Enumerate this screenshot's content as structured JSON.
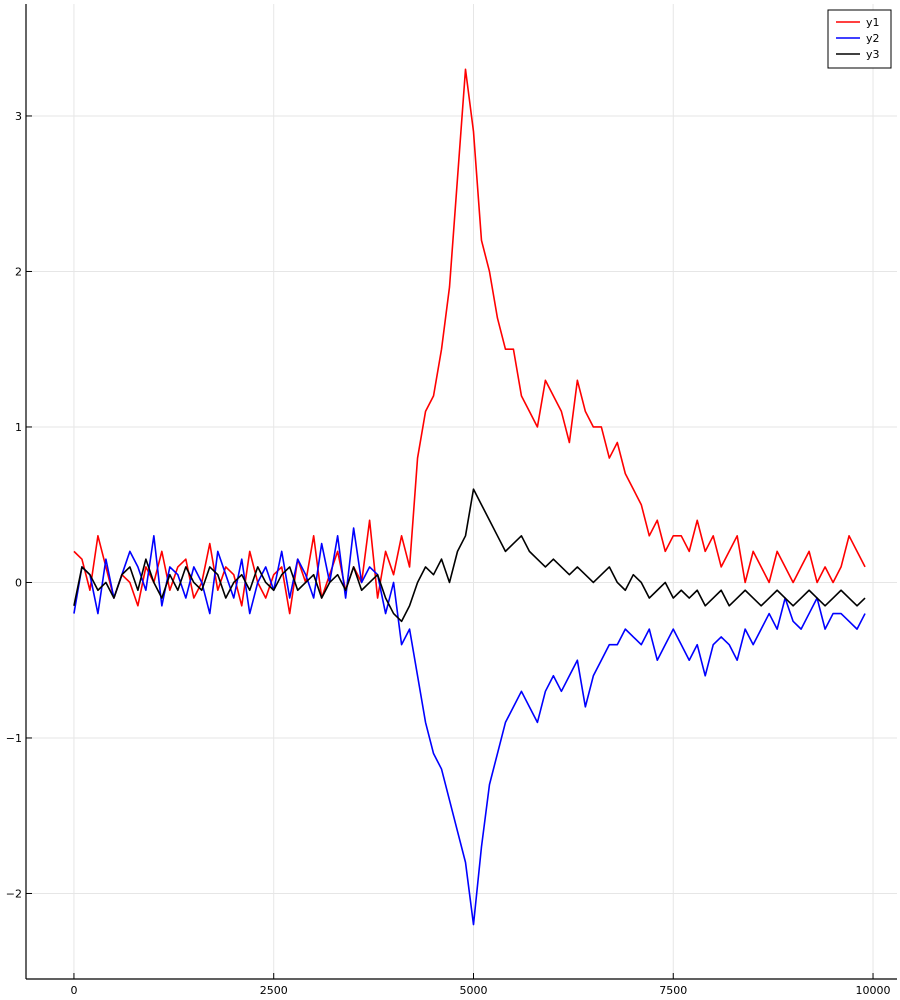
{
  "chart_data": {
    "type": "line",
    "title": "",
    "xlabel": "",
    "ylabel": "",
    "xlim": [
      -600,
      10300
    ],
    "ylim": [
      -2.55,
      3.72
    ],
    "x_ticks": [
      0,
      2500,
      5000,
      7500,
      10000
    ],
    "x_tick_labels": [
      "0",
      "2500",
      "5000",
      "7500",
      "10000"
    ],
    "y_ticks": [
      -2,
      -1,
      0,
      1,
      2,
      3
    ],
    "y_tick_labels": [
      "−2",
      "−1",
      "0",
      "1",
      "2",
      "3"
    ],
    "grid": true,
    "legend_position": "top-right",
    "x_start": 0,
    "x_step": 100,
    "series": [
      {
        "name": "y1",
        "color": "#ff0000",
        "values": [
          0.2,
          0.15,
          -0.05,
          0.3,
          0.1,
          -0.1,
          0.05,
          0.0,
          -0.15,
          0.1,
          0.0,
          0.2,
          -0.05,
          0.1,
          0.15,
          -0.1,
          0.0,
          0.25,
          -0.05,
          0.1,
          0.05,
          -0.15,
          0.2,
          0.0,
          -0.1,
          0.05,
          0.1,
          -0.2,
          0.15,
          0.0,
          0.3,
          -0.1,
          0.05,
          0.2,
          -0.05,
          0.1,
          0.0,
          0.4,
          -0.1,
          0.2,
          0.05,
          0.3,
          0.1,
          0.8,
          1.1,
          1.2,
          1.5,
          1.9,
          2.6,
          3.3,
          2.9,
          2.2,
          2.0,
          1.7,
          1.5,
          1.5,
          1.2,
          1.1,
          1.0,
          1.3,
          1.2,
          1.1,
          0.9,
          1.3,
          1.1,
          1.0,
          1.0,
          0.8,
          0.9,
          0.7,
          0.6,
          0.5,
          0.3,
          0.4,
          0.2,
          0.3,
          0.3,
          0.2,
          0.4,
          0.2,
          0.3,
          0.1,
          0.2,
          0.3,
          0.0,
          0.2,
          0.1,
          0.0,
          0.2,
          0.1,
          0.0,
          0.1,
          0.2,
          0.0,
          0.1,
          0.0,
          0.1,
          0.3,
          0.2,
          0.1
        ]
      },
      {
        "name": "y2",
        "color": "#0000ff",
        "values": [
          -0.2,
          0.1,
          0.05,
          -0.2,
          0.15,
          -0.1,
          0.05,
          0.2,
          0.1,
          -0.05,
          0.3,
          -0.15,
          0.1,
          0.05,
          -0.1,
          0.1,
          0.0,
          -0.2,
          0.2,
          0.05,
          -0.1,
          0.15,
          -0.2,
          0.0,
          0.1,
          -0.05,
          0.2,
          -0.1,
          0.15,
          0.05,
          -0.1,
          0.25,
          0.0,
          0.3,
          -0.1,
          0.35,
          0.0,
          0.1,
          0.05,
          -0.2,
          0.0,
          -0.4,
          -0.3,
          -0.6,
          -0.9,
          -1.1,
          -1.2,
          -1.4,
          -1.6,
          -1.8,
          -2.2,
          -1.7,
          -1.3,
          -1.1,
          -0.9,
          -0.8,
          -0.7,
          -0.8,
          -0.9,
          -0.7,
          -0.6,
          -0.7,
          -0.6,
          -0.5,
          -0.8,
          -0.6,
          -0.5,
          -0.4,
          -0.4,
          -0.3,
          -0.35,
          -0.4,
          -0.3,
          -0.5,
          -0.4,
          -0.3,
          -0.4,
          -0.5,
          -0.4,
          -0.6,
          -0.4,
          -0.35,
          -0.4,
          -0.5,
          -0.3,
          -0.4,
          -0.3,
          -0.2,
          -0.3,
          -0.1,
          -0.25,
          -0.3,
          -0.2,
          -0.1,
          -0.3,
          -0.2,
          -0.2,
          -0.25,
          -0.3,
          -0.2
        ]
      },
      {
        "name": "y3",
        "color": "#000000",
        "values": [
          -0.15,
          0.1,
          0.05,
          -0.05,
          0.0,
          -0.1,
          0.05,
          0.1,
          -0.05,
          0.15,
          0.0,
          -0.1,
          0.05,
          -0.05,
          0.1,
          0.0,
          -0.05,
          0.1,
          0.05,
          -0.1,
          0.0,
          0.05,
          -0.05,
          0.1,
          0.0,
          -0.05,
          0.05,
          0.1,
          -0.05,
          0.0,
          0.05,
          -0.1,
          0.0,
          0.05,
          -0.05,
          0.1,
          -0.05,
          0.0,
          0.05,
          -0.1,
          -0.2,
          -0.25,
          -0.15,
          0.0,
          0.1,
          0.05,
          0.15,
          0.0,
          0.2,
          0.3,
          0.6,
          0.5,
          0.4,
          0.3,
          0.2,
          0.25,
          0.3,
          0.2,
          0.15,
          0.1,
          0.15,
          0.1,
          0.05,
          0.1,
          0.05,
          0.0,
          0.05,
          0.1,
          0.0,
          -0.05,
          0.05,
          0.0,
          -0.1,
          -0.05,
          0.0,
          -0.1,
          -0.05,
          -0.1,
          -0.05,
          -0.15,
          -0.1,
          -0.05,
          -0.15,
          -0.1,
          -0.05,
          -0.1,
          -0.15,
          -0.1,
          -0.05,
          -0.1,
          -0.15,
          -0.1,
          -0.05,
          -0.1,
          -0.15,
          -0.1,
          -0.05,
          -0.1,
          -0.15,
          -0.1
        ]
      }
    ]
  }
}
